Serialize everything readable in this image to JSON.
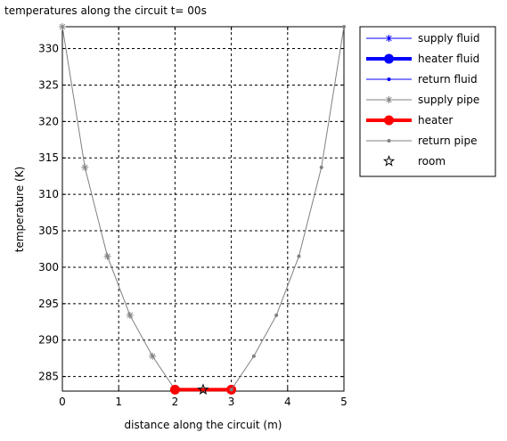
{
  "chart_data": {
    "type": "line",
    "title": "temperatures along the circuit   t= 00s",
    "xlabel": "distance along the circuit (m)",
    "ylabel": "temperature (K)",
    "xlim": [
      0,
      5
    ],
    "ylim": [
      283,
      333
    ],
    "xticks": [
      0,
      1,
      2,
      3,
      4,
      5
    ],
    "yticks": [
      285,
      290,
      295,
      300,
      305,
      310,
      315,
      320,
      325,
      330
    ],
    "grid": true,
    "legend_position": "top-right outside",
    "series": [
      {
        "name": "supply fluid",
        "color": "#0000ff",
        "width": 1,
        "marker": "asterisk",
        "x": [],
        "y": []
      },
      {
        "name": "heater fluid",
        "color": "#0000ff",
        "width": 4,
        "marker": "dot-large",
        "x": [],
        "y": []
      },
      {
        "name": "return fluid",
        "color": "#0000ff",
        "width": 1,
        "marker": "dot",
        "x": [],
        "y": []
      },
      {
        "name": "supply pipe",
        "color": "#808080",
        "width": 1,
        "marker": "asterisk",
        "x": [
          0,
          0.4,
          0.8,
          1.2,
          1.6,
          2.0
        ],
        "y": [
          333,
          313.7,
          301.5,
          293.4,
          287.8,
          283.2
        ]
      },
      {
        "name": "heater",
        "color": "#ff0000",
        "width": 4,
        "marker": "dot-large",
        "x": [
          2,
          3
        ],
        "y": [
          283.2,
          283.2
        ]
      },
      {
        "name": "return pipe",
        "color": "#808080",
        "width": 1,
        "marker": "dot",
        "x": [
          3.0,
          3.4,
          3.8,
          4.2,
          4.6,
          5.0
        ],
        "y": [
          283.2,
          287.8,
          293.4,
          301.5,
          313.7,
          333
        ]
      },
      {
        "name": "room",
        "color": "#000000",
        "width": 0,
        "marker": "star-open",
        "x": [
          2.5
        ],
        "y": [
          283.2
        ]
      }
    ]
  }
}
